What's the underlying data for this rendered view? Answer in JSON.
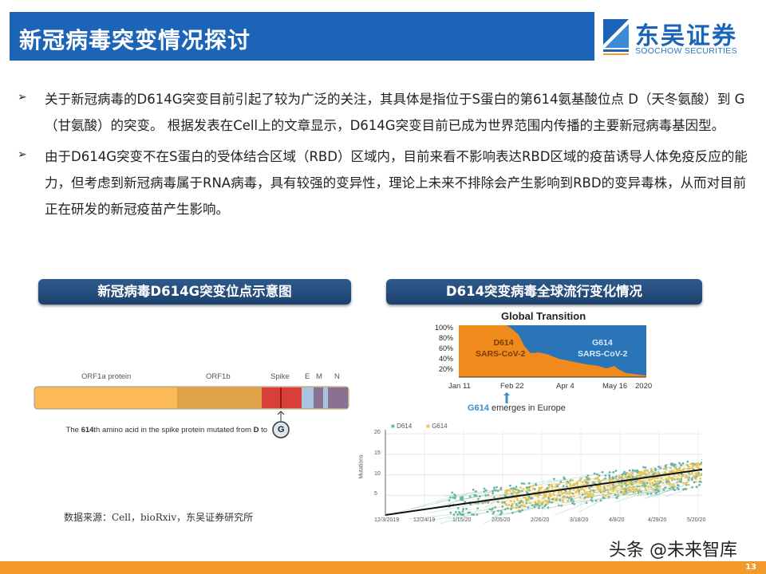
{
  "header": {
    "title": "新冠病毒突变情况探讨"
  },
  "logo": {
    "name_cn": "东吴证券",
    "name_en": "SOOCHOW SECURITIES"
  },
  "bullets": [
    {
      "marker": "➢",
      "text": "关于新冠病毒的D614G突变目前引起了较为广泛的关注，其具体是指位于S蛋白的第614氨基酸位点 D（天冬氨酸）到 G（甘氨酸）的突变。 根据发表在Cell上的文章显示，D614G突变目前已成为世界范围内传播的主要新冠病毒基因型。"
    },
    {
      "marker": "➢",
      "text": "由于D614G突变不在S蛋白的受体结合区域（RBD）区域内，目前来看不影响表达RBD区域的疫苗诱导人体免疫反应的能力，但考虑到新冠病毒属于RNA病毒，具有较强的变异性，理论上未来不排除会产生影响到RBD的变异毒株，从而对目前正在研发的新冠疫苗产生影响。"
    }
  ],
  "left_panel": {
    "title": "新冠病毒D614G突变位点示意图",
    "genes": [
      "ORF1a protein",
      "ORF1b",
      "Spike",
      "E",
      "M",
      "N"
    ],
    "caption_pre": "The ",
    "caption_bold1": "614",
    "caption_mid": "th amino acid in the spike protein mutated from ",
    "caption_bold2": "D",
    "caption_post": " to ",
    "mutant": "G"
  },
  "right_panel": {
    "title": "D614突变病毒全球流行变化情况",
    "transition": {
      "title": "Global Transition",
      "y_ticks": [
        "100%",
        "80%",
        "60%",
        "40%",
        "20%"
      ],
      "x_ticks": [
        "Jan 11",
        "Feb 22",
        "Apr 4",
        "May 16",
        "2020"
      ],
      "d614_label": [
        "D614",
        "SARS-CoV-2"
      ],
      "g614_label": [
        "G614",
        "SARS-CoV-2"
      ],
      "note_bold": "G614",
      "note": " emerges in Europe",
      "colors": {
        "d614": "#f08a1c",
        "g614": "#2a74b8"
      }
    },
    "scatter": {
      "legend": [
        "D614",
        "G614"
      ],
      "ylabel": "Mutations",
      "y_ticks": [
        "20",
        "15",
        "10",
        "5"
      ],
      "x_ticks": [
        "12/3/2019",
        "12/24/19",
        "1/15/20",
        "2/05/20",
        "2/26/20",
        "3/18/20",
        "4/8/20",
        "4/29/20",
        "5/20/20"
      ],
      "colors": {
        "d614": "#6bb5a8",
        "g614": "#e6c55a"
      }
    }
  },
  "source": "数据来源：Cell，bioRxiv，东吴证券研究所",
  "watermark": "头条 @未来智库",
  "page_number": "13"
}
